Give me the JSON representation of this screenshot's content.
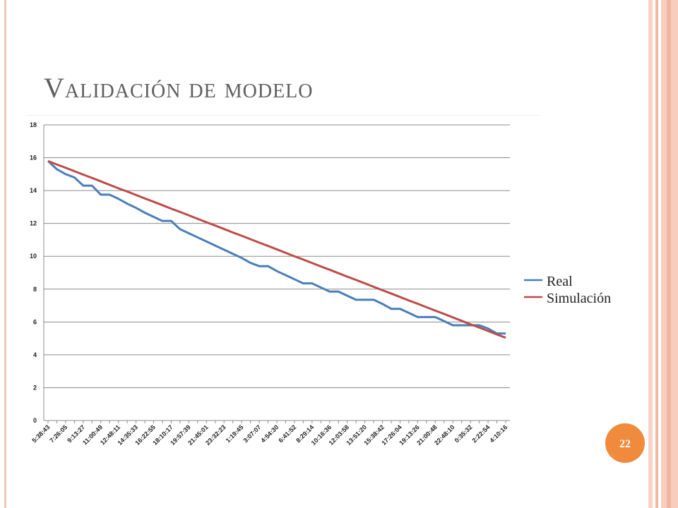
{
  "slide_title": "Validación de modelo",
  "slide_number": "22",
  "chart_data": {
    "type": "line",
    "categories": [
      "5:38:43",
      null,
      "7:26:05",
      null,
      "9:13:27",
      null,
      "11:00:49",
      null,
      "12:48:11",
      null,
      "14:35:33",
      null,
      "16:22:55",
      null,
      "18:10:17",
      null,
      "19:57:39",
      null,
      "21:45:01",
      null,
      "23:32:23",
      null,
      "1:19:45",
      null,
      "3:07:07",
      null,
      "4:54:30",
      null,
      "6:41:52",
      null,
      "8:29:14",
      null,
      "10:16:36",
      null,
      "12:03:58",
      null,
      "13:51:20",
      null,
      "15:38:42",
      null,
      "17:26:04",
      null,
      "19:13:26",
      null,
      "21:00:48",
      null,
      "22:48:10",
      null,
      "0:35:32",
      null,
      "2:22:54",
      null,
      "4:10:16"
    ],
    "series": [
      {
        "name": "Real",
        "color": "#4a7ebb",
        "values": [
          15.8,
          15.3,
          15.0,
          14.8,
          14.3,
          14.3,
          13.75,
          13.75,
          13.5,
          13.2,
          12.95,
          12.65,
          12.4,
          12.15,
          12.15,
          11.65,
          11.4,
          11.15,
          10.9,
          10.65,
          10.4,
          10.15,
          9.9,
          9.6,
          9.4,
          9.4,
          9.1,
          8.85,
          8.6,
          8.35,
          8.35,
          8.1,
          7.85,
          7.85,
          7.6,
          7.35,
          7.35,
          7.35,
          7.1,
          6.8,
          6.8,
          6.55,
          6.3,
          6.3,
          6.3,
          6.05,
          5.8,
          5.8,
          5.8,
          5.8,
          5.6,
          5.3,
          5.3
        ]
      },
      {
        "name": "Simulación",
        "color": "#be4b48",
        "values": [
          15.8,
          15.59,
          15.39,
          15.18,
          14.97,
          14.77,
          14.56,
          14.35,
          14.14,
          13.94,
          13.73,
          13.52,
          13.32,
          13.11,
          12.9,
          12.7,
          12.49,
          12.28,
          12.07,
          11.87,
          11.66,
          11.45,
          11.25,
          11.04,
          10.83,
          10.63,
          10.42,
          10.21,
          10.0,
          9.8,
          9.59,
          9.38,
          9.18,
          8.97,
          8.76,
          8.56,
          8.35,
          8.14,
          7.93,
          7.73,
          7.52,
          7.31,
          7.11,
          6.9,
          6.69,
          6.49,
          6.28,
          6.07,
          5.86,
          5.66,
          5.45,
          5.24,
          5.04
        ]
      }
    ],
    "ylim": [
      0,
      18
    ],
    "yticks": [
      0,
      2,
      4,
      6,
      8,
      10,
      12,
      14,
      16,
      18
    ],
    "grid": true,
    "legend": "right"
  }
}
